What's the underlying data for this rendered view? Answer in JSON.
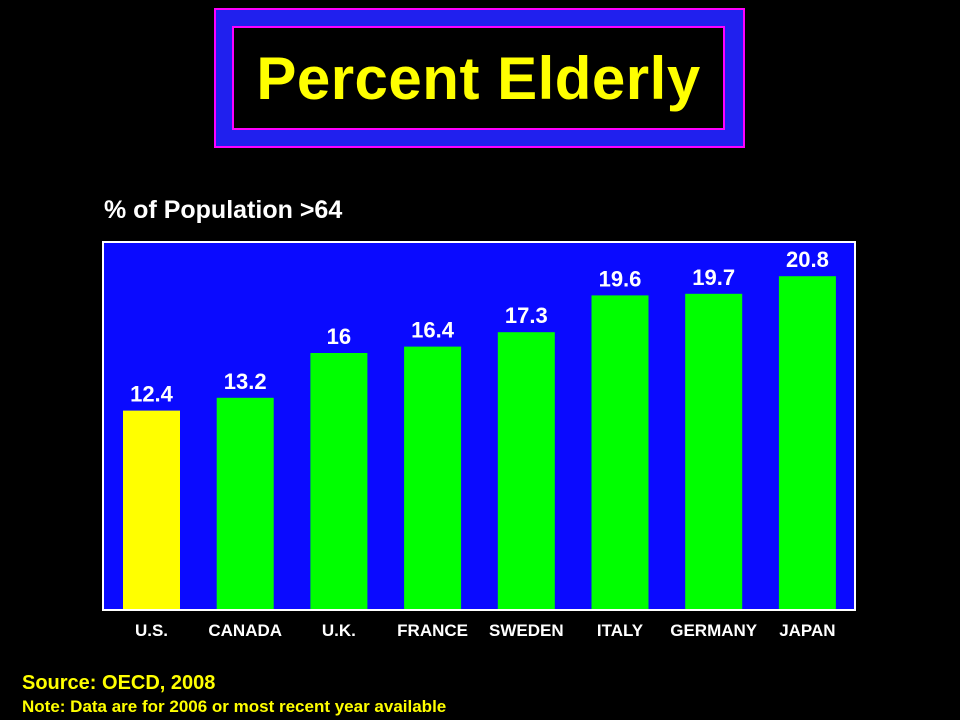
{
  "title": "Percent Elderly",
  "subtitle": "% of Population >64",
  "source": "Source: OECD, 2008",
  "note": "Note: Data are for 2006 or most recent year available",
  "colors": {
    "background": "#000000",
    "plot_background": "#0a0aff",
    "title_frame": "#2020ee",
    "title_border": "#ff00ff",
    "title_text": "#ffff00",
    "highlight_bar": "#ffff00",
    "bar": "#00ff00",
    "labels": "#ffffff"
  },
  "chart_data": {
    "type": "bar",
    "title": "Percent Elderly",
    "ylabel": "% of Population >64",
    "xlabel": "",
    "categories": [
      "U.S.",
      "CANADA",
      "U.K.",
      "FRANCE",
      "SWEDEN",
      "ITALY",
      "GERMANY",
      "JAPAN"
    ],
    "values": [
      12.4,
      13.2,
      16,
      16.4,
      17.3,
      19.6,
      19.7,
      20.8
    ],
    "value_labels": [
      "12.4",
      "13.2",
      "16",
      "16.4",
      "17.3",
      "19.6",
      "19.7",
      "20.8"
    ],
    "highlight_category": "U.S.",
    "ylim": [
      0,
      22
    ],
    "grid": false,
    "legend": "none"
  }
}
